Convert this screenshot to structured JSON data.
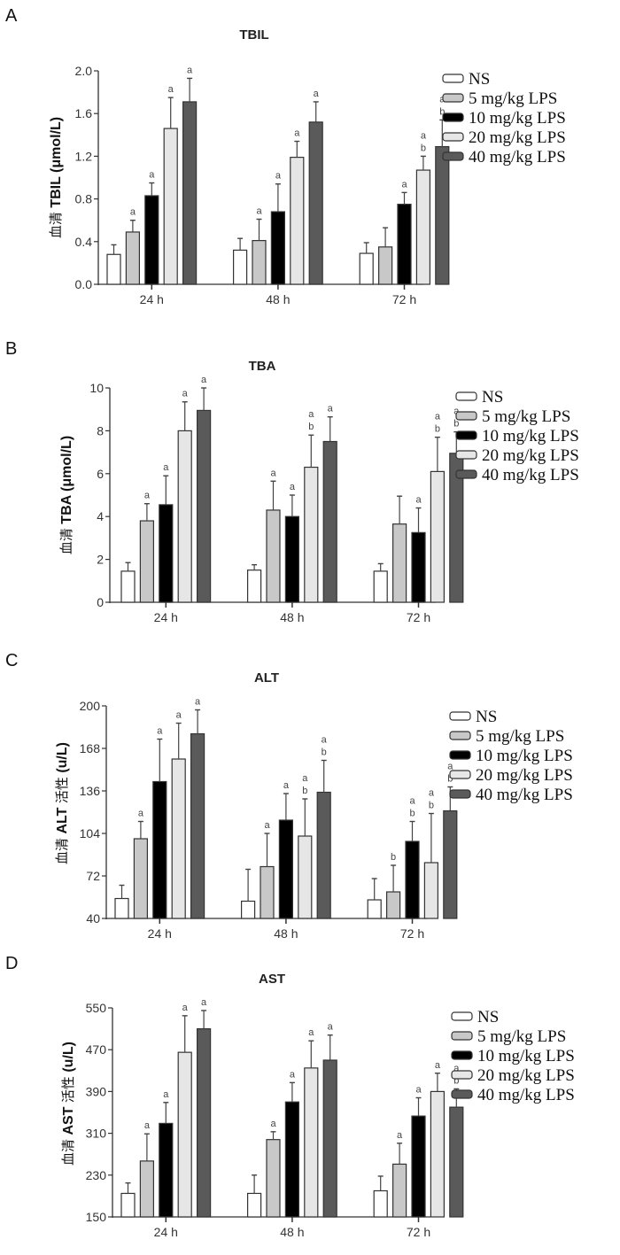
{
  "colors": {
    "NS": "#ffffff",
    "5 mg/kg LPS": "#c8c8c8",
    "10 mg/kg LPS": "#000000",
    "20 mg/kg LPS": "#e6e6e6",
    "40 mg/kg LPS": "#5a5a5a",
    "outline": "#333333"
  },
  "chart_data": [
    {
      "panel": "A",
      "type": "bar",
      "title": "TBIL",
      "ylabel": "血清 TBIL (μmol/L)",
      "ylabel_parts": {
        "cn": "血清",
        "en": " TBIL (μmol/L)"
      },
      "categories": [
        "24 h",
        "48 h",
        "72 h"
      ],
      "ylim": [
        0,
        2.0
      ],
      "yticks": [
        "0.0",
        "0.4",
        "0.8",
        "1.2",
        "1.6",
        "2.0"
      ],
      "ytick_values": [
        0,
        0.4,
        0.8,
        1.2,
        1.6,
        2.0
      ],
      "legend": [
        "NS",
        "5 mg/kg LPS",
        "10 mg/kg LPS",
        "20 mg/kg LPS",
        "40 mg/kg LPS"
      ],
      "legend_position": "right",
      "series": [
        {
          "name": "NS",
          "values": [
            0.28,
            0.32,
            0.29
          ],
          "errors": [
            0.09,
            0.11,
            0.1
          ],
          "labels": [
            "",
            "",
            ""
          ]
        },
        {
          "name": "5 mg/kg LPS",
          "values": [
            0.49,
            0.41,
            0.35
          ],
          "errors": [
            0.11,
            0.2,
            0.18
          ],
          "labels": [
            "a",
            "a",
            ""
          ]
        },
        {
          "name": "10 mg/kg LPS",
          "values": [
            0.83,
            0.68,
            0.75
          ],
          "errors": [
            0.12,
            0.26,
            0.11
          ],
          "labels": [
            "a",
            "a",
            "a"
          ]
        },
        {
          "name": "20 mg/kg LPS",
          "values": [
            1.46,
            1.19,
            1.07
          ],
          "errors": [
            0.29,
            0.15,
            0.13
          ],
          "labels": [
            "a",
            "a",
            "a b"
          ]
        },
        {
          "name": "40 mg/kg LPS",
          "values": [
            1.71,
            1.52,
            1.29
          ],
          "errors": [
            0.22,
            0.19,
            0.25
          ],
          "labels": [
            "a",
            "a",
            "a b"
          ]
        }
      ]
    },
    {
      "panel": "B",
      "type": "bar",
      "title": "TBA",
      "ylabel": "血清 TBA (μmol/L)",
      "ylabel_parts": {
        "cn": "血清",
        "en": " TBA (μmol/L)"
      },
      "categories": [
        "24 h",
        "48 h",
        "72 h"
      ],
      "ylim": [
        0,
        10
      ],
      "yticks": [
        "0",
        "2",
        "4",
        "6",
        "8",
        "10"
      ],
      "ytick_values": [
        0,
        2,
        4,
        6,
        8,
        10
      ],
      "legend": [
        "NS",
        "5 mg/kg LPS",
        "10 mg/kg LPS",
        "20 mg/kg LPS",
        "40 mg/kg LPS"
      ],
      "legend_position": "right",
      "series": [
        {
          "name": "NS",
          "values": [
            1.45,
            1.5,
            1.45
          ],
          "errors": [
            0.4,
            0.25,
            0.35
          ],
          "labels": [
            "",
            "",
            ""
          ]
        },
        {
          "name": "5 mg/kg LPS",
          "values": [
            3.8,
            4.3,
            3.65
          ],
          "errors": [
            0.8,
            1.35,
            1.3
          ],
          "labels": [
            "a",
            "a",
            ""
          ]
        },
        {
          "name": "10 mg/kg LPS",
          "values": [
            4.55,
            4.0,
            3.25
          ],
          "errors": [
            1.35,
            1.0,
            1.15
          ],
          "labels": [
            "a",
            "a",
            "a"
          ]
        },
        {
          "name": "20 mg/kg LPS",
          "values": [
            8.0,
            6.3,
            6.1
          ],
          "errors": [
            1.35,
            1.5,
            1.6
          ],
          "labels": [
            "a",
            "a b",
            "a b"
          ]
        },
        {
          "name": "40 mg/kg LPS",
          "values": [
            8.95,
            7.5,
            6.95
          ],
          "errors": [
            1.05,
            1.15,
            1.0
          ],
          "labels": [
            "a",
            "a",
            "a b"
          ]
        }
      ]
    },
    {
      "panel": "C",
      "type": "bar",
      "title": "ALT",
      "ylabel": "血清 ALT 活性 (u/L)",
      "ylabel_parts": {
        "cn": "血清",
        "en": " ALT ",
        "cn2": "活性",
        "en2": " (u/L)"
      },
      "categories": [
        "24 h",
        "48 h",
        "72 h"
      ],
      "ylim": [
        40,
        200
      ],
      "yticks": [
        "40",
        "72",
        "104",
        "136",
        "168",
        "200"
      ],
      "ytick_values": [
        40,
        72,
        104,
        136,
        168,
        200
      ],
      "legend": [
        "NS",
        "5 mg/kg LPS",
        "10 mg/kg LPS",
        "20 mg/kg LPS",
        "40 mg/kg LPS"
      ],
      "legend_position": "right",
      "series": [
        {
          "name": "NS",
          "values": [
            55,
            53,
            54
          ],
          "errors": [
            10,
            24,
            16
          ],
          "labels": [
            "",
            "",
            ""
          ]
        },
        {
          "name": "5 mg/kg LPS",
          "values": [
            100,
            79,
            60
          ],
          "errors": [
            13,
            25,
            20
          ],
          "labels": [
            "a",
            "a",
            "b"
          ]
        },
        {
          "name": "10 mg/kg LPS",
          "values": [
            143,
            114,
            98
          ],
          "errors": [
            32,
            20,
            15
          ],
          "labels": [
            "a",
            "a",
            "a b"
          ]
        },
        {
          "name": "20 mg/kg LPS",
          "values": [
            160,
            102,
            82
          ],
          "errors": [
            27,
            28,
            37
          ],
          "labels": [
            "a",
            "a b",
            "a b"
          ]
        },
        {
          "name": "40 mg/kg LPS",
          "values": [
            179,
            135,
            121
          ],
          "errors": [
            18,
            24,
            18
          ],
          "labels": [
            "a",
            "a b",
            "a b"
          ]
        }
      ]
    },
    {
      "panel": "D",
      "type": "bar",
      "title": "AST",
      "ylabel": "血清 AST 活性 (u/L)",
      "ylabel_parts": {
        "cn": "血清",
        "en": " AST ",
        "cn2": "活性",
        "en2": " (u/L)"
      },
      "categories": [
        "24 h",
        "48 h",
        "72 h"
      ],
      "ylim": [
        150,
        550
      ],
      "yticks": [
        "150",
        "230",
        "310",
        "390",
        "470",
        "550"
      ],
      "ytick_values": [
        150,
        230,
        310,
        390,
        470,
        550
      ],
      "legend": [
        "NS",
        "5 mg/kg LPS",
        "10 mg/kg LPS",
        "20 mg/kg LPS",
        "40 mg/kg LPS"
      ],
      "legend_position": "right",
      "series": [
        {
          "name": "NS",
          "values": [
            195,
            195,
            200
          ],
          "errors": [
            20,
            35,
            28
          ],
          "labels": [
            "",
            "",
            ""
          ]
        },
        {
          "name": "5 mg/kg LPS",
          "values": [
            257,
            298,
            251
          ],
          "errors": [
            52,
            15,
            40
          ],
          "labels": [
            "a",
            "a",
            "a"
          ]
        },
        {
          "name": "10 mg/kg LPS",
          "values": [
            329,
            370,
            343
          ],
          "errors": [
            40,
            37,
            35
          ],
          "labels": [
            "a",
            "a",
            "a"
          ]
        },
        {
          "name": "20 mg/kg LPS",
          "values": [
            465,
            435,
            390
          ],
          "errors": [
            70,
            52,
            35
          ],
          "labels": [
            "a",
            "a",
            "a"
          ]
        },
        {
          "name": "40 mg/kg LPS",
          "values": [
            510,
            450,
            360
          ],
          "errors": [
            35,
            48,
            35
          ],
          "labels": [
            "a",
            "a",
            "a b"
          ]
        }
      ]
    }
  ]
}
